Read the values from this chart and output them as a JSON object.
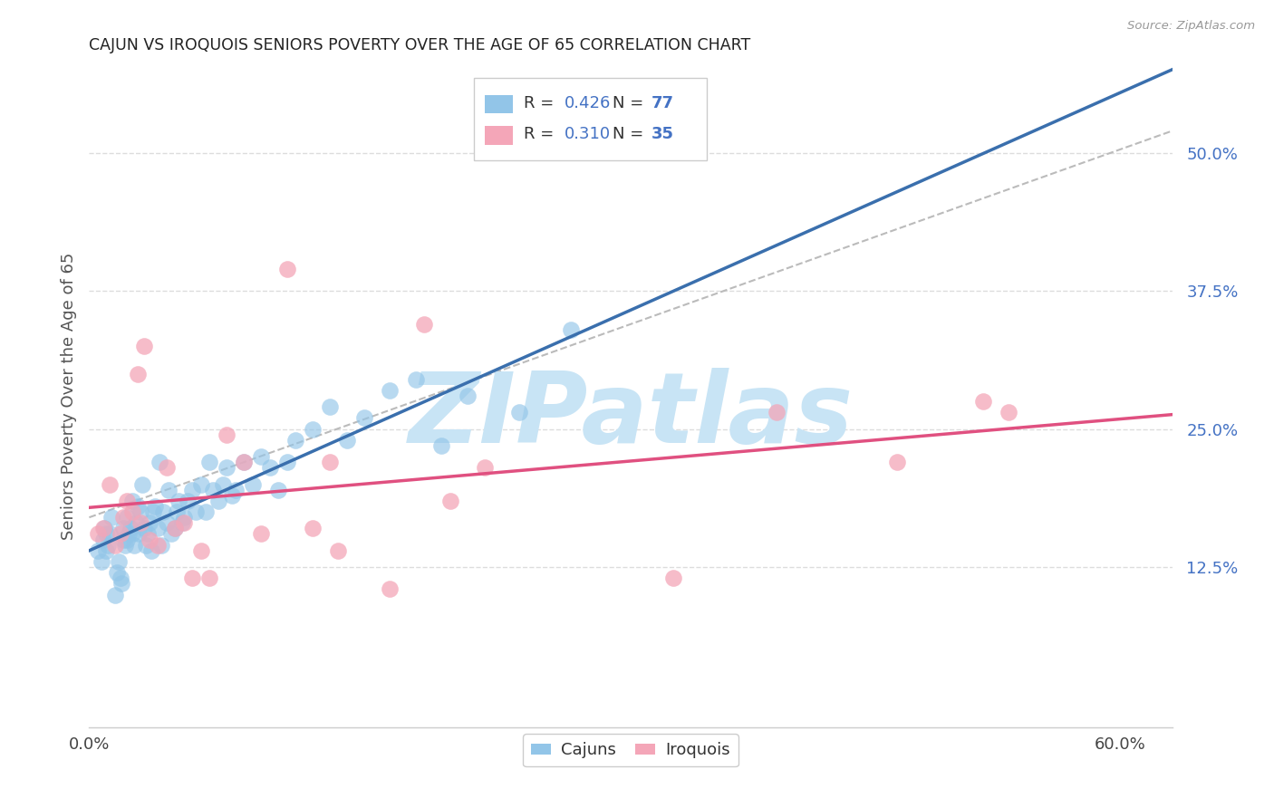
{
  "title": "CAJUN VS IROQUOIS SENIORS POVERTY OVER THE AGE OF 65 CORRELATION CHART",
  "source": "Source: ZipAtlas.com",
  "ylabel": "Seniors Poverty Over the Age of 65",
  "xlabel_cajuns": "Cajuns",
  "xlabel_iroquois": "Iroquois",
  "xlim": [
    0.0,
    0.63
  ],
  "ylim": [
    -0.02,
    0.58
  ],
  "ytick_labels_right": [
    "12.5%",
    "25.0%",
    "37.5%",
    "50.0%"
  ],
  "ytick_vals_right": [
    0.125,
    0.25,
    0.375,
    0.5
  ],
  "cajun_R": 0.426,
  "cajun_N": 77,
  "iroquois_R": 0.31,
  "iroquois_N": 35,
  "cajun_color": "#92c5e8",
  "iroquois_color": "#f4a6b8",
  "cajun_line_color": "#3a6fad",
  "iroquois_line_color": "#e05080",
  "dashed_line_color": "#bbbbbb",
  "background_color": "#ffffff",
  "cajun_x": [
    0.005,
    0.007,
    0.008,
    0.009,
    0.01,
    0.01,
    0.011,
    0.012,
    0.013,
    0.015,
    0.016,
    0.017,
    0.018,
    0.019,
    0.02,
    0.02,
    0.021,
    0.022,
    0.022,
    0.023,
    0.024,
    0.025,
    0.025,
    0.026,
    0.027,
    0.028,
    0.029,
    0.03,
    0.031,
    0.032,
    0.033,
    0.034,
    0.035,
    0.036,
    0.037,
    0.038,
    0.04,
    0.041,
    0.042,
    0.043,
    0.045,
    0.046,
    0.048,
    0.05,
    0.051,
    0.052,
    0.054,
    0.055,
    0.057,
    0.06,
    0.062,
    0.065,
    0.068,
    0.07,
    0.072,
    0.075,
    0.078,
    0.08,
    0.083,
    0.085,
    0.09,
    0.095,
    0.1,
    0.105,
    0.11,
    0.115,
    0.12,
    0.13,
    0.14,
    0.15,
    0.16,
    0.175,
    0.19,
    0.205,
    0.22,
    0.25,
    0.28
  ],
  "cajun_y": [
    0.14,
    0.13,
    0.15,
    0.16,
    0.14,
    0.155,
    0.145,
    0.155,
    0.17,
    0.1,
    0.12,
    0.13,
    0.115,
    0.11,
    0.15,
    0.16,
    0.145,
    0.15,
    0.17,
    0.155,
    0.16,
    0.185,
    0.155,
    0.145,
    0.165,
    0.18,
    0.155,
    0.175,
    0.2,
    0.16,
    0.145,
    0.155,
    0.165,
    0.14,
    0.175,
    0.18,
    0.16,
    0.22,
    0.145,
    0.175,
    0.165,
    0.195,
    0.155,
    0.16,
    0.175,
    0.185,
    0.165,
    0.17,
    0.185,
    0.195,
    0.175,
    0.2,
    0.175,
    0.22,
    0.195,
    0.185,
    0.2,
    0.215,
    0.19,
    0.195,
    0.22,
    0.2,
    0.225,
    0.215,
    0.195,
    0.22,
    0.24,
    0.25,
    0.27,
    0.24,
    0.26,
    0.285,
    0.295,
    0.235,
    0.28,
    0.265,
    0.34
  ],
  "iroquois_x": [
    0.005,
    0.008,
    0.012,
    0.015,
    0.018,
    0.02,
    0.022,
    0.025,
    0.028,
    0.03,
    0.032,
    0.035,
    0.04,
    0.045,
    0.05,
    0.055,
    0.06,
    0.065,
    0.07,
    0.08,
    0.09,
    0.1,
    0.115,
    0.13,
    0.14,
    0.145,
    0.175,
    0.195,
    0.21,
    0.23,
    0.34,
    0.4,
    0.47,
    0.52,
    0.535
  ],
  "iroquois_y": [
    0.155,
    0.16,
    0.2,
    0.145,
    0.155,
    0.17,
    0.185,
    0.175,
    0.3,
    0.165,
    0.325,
    0.15,
    0.145,
    0.215,
    0.16,
    0.165,
    0.115,
    0.14,
    0.115,
    0.245,
    0.22,
    0.155,
    0.395,
    0.16,
    0.22,
    0.14,
    0.105,
    0.345,
    0.185,
    0.215,
    0.115,
    0.265,
    0.22,
    0.275,
    0.265
  ],
  "watermark": "ZIPatlas",
  "watermark_color": "#c8e4f5",
  "grid_color": "#dddddd",
  "legend_color": "#4472c4"
}
